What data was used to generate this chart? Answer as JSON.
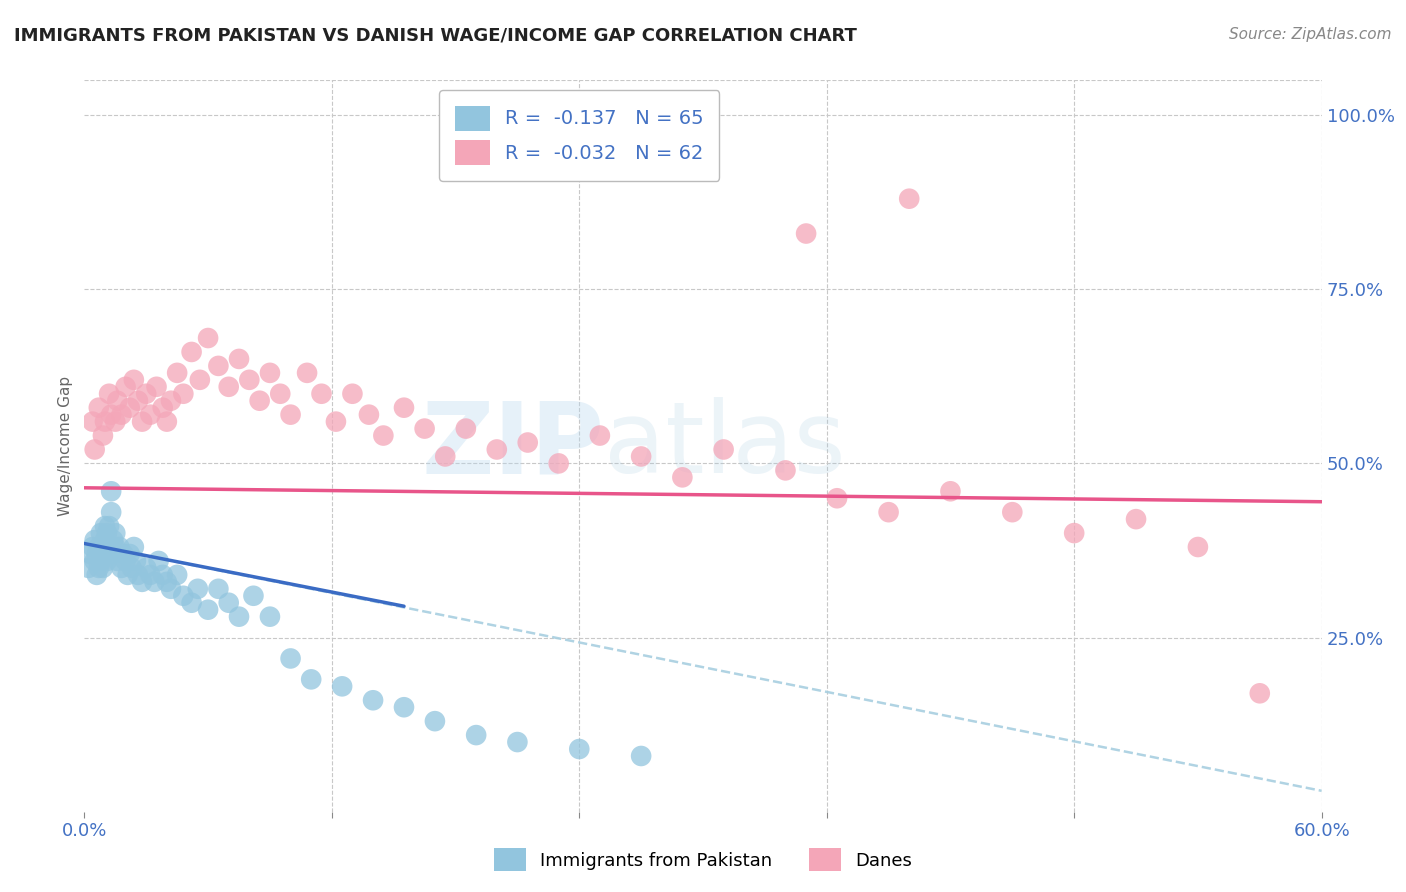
{
  "title": "IMMIGRANTS FROM PAKISTAN VS DANISH WAGE/INCOME GAP CORRELATION CHART",
  "source": "Source: ZipAtlas.com",
  "ylabel": "Wage/Income Gap",
  "xlim": [
    0.0,
    0.6
  ],
  "ylim": [
    0.0,
    1.05
  ],
  "x_ticks": [
    0.0,
    0.12,
    0.24,
    0.36,
    0.48,
    0.6
  ],
  "x_tick_labels": [
    "0.0%",
    "",
    "",
    "",
    "",
    "60.0%"
  ],
  "y_ticks_right": [
    0.25,
    0.5,
    0.75,
    1.0
  ],
  "y_tick_labels_right": [
    "25.0%",
    "50.0%",
    "75.0%",
    "100.0%"
  ],
  "blue_R": -0.137,
  "blue_N": 65,
  "pink_R": -0.032,
  "pink_N": 62,
  "blue_color": "#92c5de",
  "pink_color": "#f4a6b8",
  "blue_scatter_x": [
    0.002,
    0.003,
    0.004,
    0.005,
    0.005,
    0.006,
    0.006,
    0.007,
    0.007,
    0.008,
    0.008,
    0.009,
    0.009,
    0.01,
    0.01,
    0.01,
    0.011,
    0.011,
    0.012,
    0.012,
    0.013,
    0.013,
    0.014,
    0.014,
    0.015,
    0.015,
    0.016,
    0.017,
    0.018,
    0.019,
    0.02,
    0.021,
    0.022,
    0.023,
    0.024,
    0.025,
    0.026,
    0.028,
    0.03,
    0.032,
    0.034,
    0.036,
    0.038,
    0.04,
    0.042,
    0.045,
    0.048,
    0.052,
    0.055,
    0.06,
    0.065,
    0.07,
    0.075,
    0.082,
    0.09,
    0.1,
    0.11,
    0.125,
    0.14,
    0.155,
    0.17,
    0.19,
    0.21,
    0.24,
    0.27
  ],
  "blue_scatter_y": [
    0.35,
    0.37,
    0.38,
    0.36,
    0.39,
    0.34,
    0.37,
    0.35,
    0.38,
    0.36,
    0.4,
    0.35,
    0.38,
    0.37,
    0.39,
    0.41,
    0.36,
    0.4,
    0.38,
    0.41,
    0.43,
    0.46,
    0.37,
    0.39,
    0.38,
    0.4,
    0.36,
    0.38,
    0.35,
    0.37,
    0.36,
    0.34,
    0.37,
    0.35,
    0.38,
    0.36,
    0.34,
    0.33,
    0.35,
    0.34,
    0.33,
    0.36,
    0.34,
    0.33,
    0.32,
    0.34,
    0.31,
    0.3,
    0.32,
    0.29,
    0.32,
    0.3,
    0.28,
    0.31,
    0.28,
    0.22,
    0.19,
    0.18,
    0.16,
    0.15,
    0.13,
    0.11,
    0.1,
    0.09,
    0.08
  ],
  "pink_scatter_x": [
    0.004,
    0.005,
    0.007,
    0.009,
    0.01,
    0.012,
    0.013,
    0.015,
    0.016,
    0.018,
    0.02,
    0.022,
    0.024,
    0.026,
    0.028,
    0.03,
    0.032,
    0.035,
    0.038,
    0.04,
    0.042,
    0.045,
    0.048,
    0.052,
    0.056,
    0.06,
    0.065,
    0.07,
    0.075,
    0.08,
    0.085,
    0.09,
    0.095,
    0.1,
    0.108,
    0.115,
    0.122,
    0.13,
    0.138,
    0.145,
    0.155,
    0.165,
    0.175,
    0.185,
    0.2,
    0.215,
    0.23,
    0.25,
    0.27,
    0.29,
    0.31,
    0.34,
    0.365,
    0.39,
    0.42,
    0.45,
    0.48,
    0.51,
    0.54,
    0.57,
    0.35,
    0.4
  ],
  "pink_scatter_y": [
    0.56,
    0.52,
    0.58,
    0.54,
    0.56,
    0.6,
    0.57,
    0.56,
    0.59,
    0.57,
    0.61,
    0.58,
    0.62,
    0.59,
    0.56,
    0.6,
    0.57,
    0.61,
    0.58,
    0.56,
    0.59,
    0.63,
    0.6,
    0.66,
    0.62,
    0.68,
    0.64,
    0.61,
    0.65,
    0.62,
    0.59,
    0.63,
    0.6,
    0.57,
    0.63,
    0.6,
    0.56,
    0.6,
    0.57,
    0.54,
    0.58,
    0.55,
    0.51,
    0.55,
    0.52,
    0.53,
    0.5,
    0.54,
    0.51,
    0.48,
    0.52,
    0.49,
    0.45,
    0.43,
    0.46,
    0.43,
    0.4,
    0.42,
    0.38,
    0.17,
    0.83,
    0.88
  ],
  "blue_trend_x": [
    0.0,
    0.155
  ],
  "blue_trend_y": [
    0.385,
    0.295
  ],
  "pink_trend_x": [
    0.0,
    0.6
  ],
  "pink_trend_y": [
    0.465,
    0.445
  ],
  "dashed_trend_x": [
    0.0,
    0.6
  ],
  "dashed_trend_y": [
    0.385,
    0.03
  ],
  "watermark_zip": "ZIP",
  "watermark_atlas": "atlas",
  "background_color": "#ffffff",
  "grid_color": "#c8c8c8"
}
